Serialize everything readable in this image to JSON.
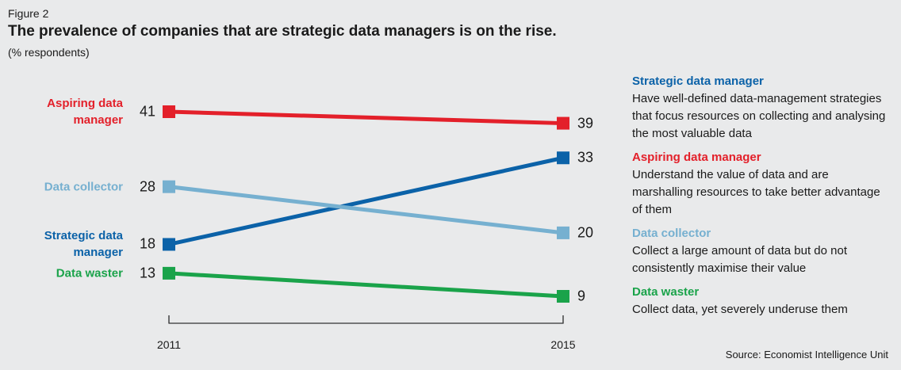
{
  "figure": "Figure 2",
  "chart_data": {
    "type": "slope",
    "title": "The prevalence of companies that are strategic data managers is on the rise.",
    "subtitle": "(% respondents)",
    "categories": [
      "2011",
      "2015"
    ],
    "series": [
      {
        "name": "Strategic data manager",
        "color": "#0b62a8",
        "values": [
          18,
          33
        ],
        "description": "Have well-defined data-management strategies that focus resources on collecting and analysing the most valuable data"
      },
      {
        "name": "Aspiring data manager",
        "color": "#e3202a",
        "values": [
          41,
          39
        ],
        "description": "Understand the value of data and are marshalling resources to take better advantage of them"
      },
      {
        "name": "Data collector",
        "color": "#76b0d0",
        "values": [
          28,
          20
        ],
        "description": "Collect a large amount of data but do not consistently maximise their value"
      },
      {
        "name": "Data waster",
        "color": "#1aa34a",
        "values": [
          13,
          9
        ],
        "description": "Collect data, yet severely underuse them"
      }
    ],
    "source": "Source: Economist Intelligence Unit"
  }
}
